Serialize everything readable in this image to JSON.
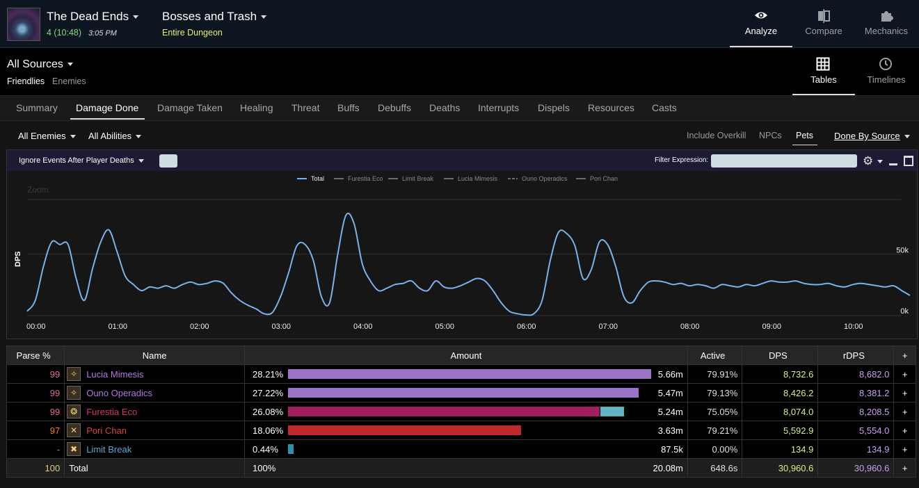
{
  "header": {
    "zone_title": "The Dead Ends",
    "fight_number": "4 (10:48)",
    "fight_time": "3:05 PM",
    "encounter_title": "Bosses and Trash",
    "encounter_subtitle": "Entire Dungeon",
    "nav": [
      {
        "label": "Analyze",
        "icon": "eye-icon",
        "active": true
      },
      {
        "label": "Compare",
        "icon": "compare-icon"
      },
      {
        "label": "Mechanics",
        "icon": "puzzle-icon"
      }
    ]
  },
  "sources": {
    "title": "All Sources",
    "friendlies": "Friendlies",
    "enemies": "Enemies",
    "views": [
      {
        "label": "Tables",
        "icon": "grid-icon",
        "active": true
      },
      {
        "label": "Timelines",
        "icon": "clock-icon"
      }
    ]
  },
  "tabs": [
    "Summary",
    "Damage Done",
    "Damage Taken",
    "Healing",
    "Threat",
    "Buffs",
    "Debuffs",
    "Deaths",
    "Interrupts",
    "Dispels",
    "Resources",
    "Casts"
  ],
  "active_tab": "Damage Done",
  "filters": {
    "enemies": "All Enemies",
    "abilities": "All Abilities",
    "include_overkill": "Include Overkill",
    "npcs": "NPCs",
    "pets": "Pets",
    "done_by": "Done By Source"
  },
  "graph": {
    "ignore_events": "Ignore Events After Player Deaths",
    "filter_label": "Filter Expression:",
    "filter_value": "",
    "zoom_text": "Zoom"
  },
  "chart_data": {
    "type": "line",
    "title": "",
    "ylabel": "DPS",
    "legend": [
      "Total",
      "Furestia Eco",
      "Limit Break",
      "Lucia Mimesis",
      "Ouno Operadics",
      "Pori Chan"
    ],
    "legend_placement": "top-center",
    "y_ticks": [
      "0k",
      "50k"
    ],
    "ylim": [
      0,
      95000
    ],
    "x_ticks": [
      "00:00",
      "01:00",
      "02:00",
      "03:00",
      "04:00",
      "05:00",
      "06:00",
      "07:00",
      "08:00",
      "09:00",
      "10:00"
    ],
    "x_unit": "seconds",
    "xlim": [
      0,
      648
    ],
    "series": [
      {
        "name": "Total",
        "color": "#7ab3ec",
        "x": [
          0,
          6,
          12,
          18,
          24,
          30,
          36,
          42,
          48,
          54,
          60,
          66,
          72,
          78,
          84,
          90,
          96,
          102,
          108,
          114,
          120,
          126,
          132,
          138,
          144,
          150,
          156,
          162,
          168,
          174,
          180,
          186,
          192,
          198,
          204,
          210,
          216,
          222,
          228,
          234,
          240,
          246,
          252,
          258,
          264,
          270,
          276,
          282,
          288,
          294,
          300,
          306,
          312,
          318,
          324,
          330,
          336,
          342,
          348,
          354,
          360,
          366,
          372,
          378,
          384,
          390,
          396,
          402,
          408,
          414,
          420,
          426,
          432,
          438,
          444,
          450,
          456,
          462,
          468,
          474,
          480,
          486,
          492,
          498,
          504,
          510,
          516,
          522,
          528,
          534,
          540,
          546,
          552,
          558,
          564,
          570,
          576,
          582,
          588,
          594,
          600,
          606,
          612,
          618,
          624,
          630,
          636,
          642,
          648
        ],
        "y": [
          3000,
          12000,
          40000,
          60000,
          58000,
          58000,
          30000,
          12000,
          38000,
          60000,
          70000,
          52000,
          32000,
          25000,
          20000,
          23000,
          22000,
          24000,
          22000,
          25000,
          27000,
          25000,
          26000,
          28000,
          26000,
          18000,
          12000,
          8000,
          5000,
          1000,
          2000,
          15000,
          35000,
          57000,
          58000,
          45000,
          15000,
          10000,
          50000,
          82000,
          75000,
          42000,
          28000,
          20000,
          22000,
          25000,
          26000,
          28000,
          22000,
          20000,
          28000,
          23000,
          22000,
          24000,
          27000,
          30000,
          28000,
          20000,
          10000,
          3000,
          1000,
          0,
          1000,
          12000,
          45000,
          68000,
          67000,
          57000,
          30000,
          37000,
          60000,
          58000,
          40000,
          15000,
          10000,
          20000,
          27000,
          28000,
          27000,
          25000,
          26000,
          24000,
          25000,
          24000,
          22000,
          25000,
          24000,
          23000,
          25000,
          24000,
          26000,
          28000,
          27000,
          27000,
          28000,
          26000,
          25000,
          25000,
          26000,
          24000,
          23000,
          25000,
          26000,
          25000,
          24000,
          23000,
          24000,
          20000,
          16000
        ]
      },
      {
        "name": "Furestia Eco",
        "x": [],
        "y": []
      },
      {
        "name": "Limit Break",
        "x": [],
        "y": []
      },
      {
        "name": "Lucia Mimesis",
        "x": [],
        "y": []
      },
      {
        "name": "Ouno Operadics",
        "x": [],
        "y": []
      },
      {
        "name": "Pori Chan",
        "x": [],
        "y": []
      }
    ]
  },
  "table": {
    "headers": [
      "Parse %",
      "Name",
      "Amount",
      "Active",
      "DPS",
      "rDPS",
      "+"
    ],
    "rows": [
      {
        "parse": "99",
        "parse_color": "#e268a8",
        "name": "Lucia Mimesis",
        "name_color": "#b07be0",
        "job_icon": "astrologian-icon",
        "icon_glyph": "✧",
        "pct": "28.21%",
        "amount": "5.66m",
        "bar_fraction": 1.0,
        "bar_color": "#9b74c7",
        "active": "79.91%",
        "dps": "8,732.6",
        "rdps": "8,682.0"
      },
      {
        "parse": "99",
        "parse_color": "#e268a8",
        "name": "Ouno Operadics",
        "name_color": "#b07be0",
        "job_icon": "astrologian-icon",
        "icon_glyph": "✧",
        "pct": "27.22%",
        "amount": "5.47m",
        "bar_fraction": 0.966,
        "bar_color": "#9b74c7",
        "active": "79.13%",
        "dps": "8,426.2",
        "rdps": "8,381.2"
      },
      {
        "parse": "99",
        "parse_color": "#e268a8",
        "name": "Furestia Eco",
        "name_color": "#d6336c",
        "job_icon": "dancer-icon",
        "icon_glyph": "❂",
        "pct": "26.08%",
        "amount": "5.24m",
        "bar_fraction": 0.858,
        "bar_color": "#a31e5c",
        "pet_fraction": 0.065,
        "pet_color": "#5fb4c0",
        "active": "75.05%",
        "dps": "8,074.0",
        "rdps": "8,208.5"
      },
      {
        "parse": "97",
        "parse_color": "#ff8000",
        "name": "Pori Chan",
        "name_color": "#d9443a",
        "job_icon": "warrior-icon",
        "icon_glyph": "✕",
        "pct": "18.06%",
        "amount": "3.63m",
        "bar_fraction": 0.641,
        "bar_color": "#c0282a",
        "active": "79.21%",
        "dps": "5,592.9",
        "rdps": "5,554.0"
      },
      {
        "parse": "-",
        "parse_color": "#5aa7d0",
        "name": "Limit Break",
        "name_color": "#5aa7d0",
        "job_icon": "limit-break-icon",
        "icon_glyph": "✖",
        "pct": "0.44%",
        "amount": "87.5k",
        "bar_fraction": 0.015,
        "bar_color": "#2f8fb0",
        "active": "0.00%",
        "dps": "134.9",
        "rdps": "134.9"
      }
    ],
    "total": {
      "parse": "100",
      "parse_color": "#e5cc80",
      "name": "Total",
      "pct": "100%",
      "amount": "20.08m",
      "active": "648.6s",
      "dps": "30,960.6",
      "rdps": "30,960.6"
    }
  }
}
